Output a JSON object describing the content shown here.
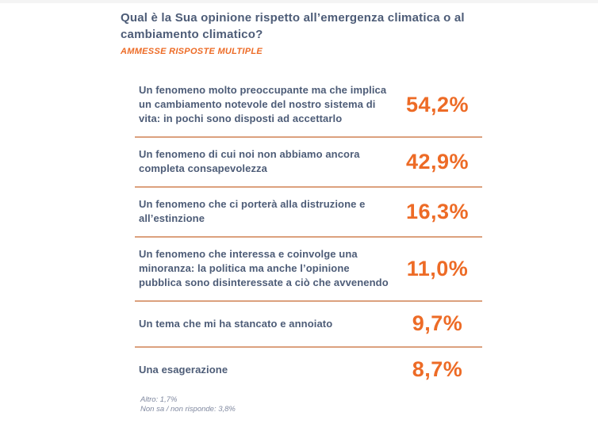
{
  "header": {
    "title": "Qual è la Sua opinione rispetto all’emergenza climatica o al cambiamento climatico?",
    "subtitle": "AMMESSE RISPOSTE MULTIPLE"
  },
  "results": {
    "rows": [
      {
        "text": "Un fenomeno molto preoccupante ma che implica un cambiamento notevole del nostro sistema di vita: in pochi sono disposti ad accettarlo",
        "value": "54,2%"
      },
      {
        "text": "Un fenomeno di cui noi non abbiamo ancora completa consapevolezza",
        "value": "42,9%"
      },
      {
        "text": "Un fenomeno che ci porterà alla distruzione e all’estinzione",
        "value": "16,3%"
      },
      {
        "text": "Un fenomeno che interessa e coinvolge una minoranza: la politica ma anche l’opinione pubblica sono disinteressate a ciò che avvenendo",
        "value": "11,0%"
      },
      {
        "text": "Un tema che mi ha stancato e annoiato",
        "value": "9,7%"
      },
      {
        "text": "Una esagerazione",
        "value": "8,7%"
      }
    ]
  },
  "footnotes": {
    "line1": "Altro: 1,7%",
    "line2": "Non sa / non risponde: 3,8%"
  },
  "colors": {
    "text_navy": "#4d5c77",
    "accent_orange": "#ed6b26",
    "divider_salmon": "#dca17e",
    "footnote_gray": "#8089a0",
    "background": "#ffffff"
  },
  "chart_data": {
    "type": "table",
    "title": "Qual è la Sua opinione rispetto all’emergenza climatica o al cambiamento climatico?",
    "subtitle": "AMMESSE RISPOSTE MULTIPLE",
    "categories": [
      "Un fenomeno molto preoccupante ma che implica un cambiamento notevole del nostro sistema di vita: in pochi sono disposti ad accettarlo",
      "Un fenomeno di cui noi non abbiamo ancora completa consapevolezza",
      "Un fenomeno che ci porterà alla distruzione e all’estinzione",
      "Un fenomeno che interessa e coinvolge una minoranza: la politica ma anche l’opinione pubblica sono disinteressate a ciò che avvenendo",
      "Un tema che mi ha stancato e annoiato",
      "Una esagerazione"
    ],
    "values": [
      54.2,
      42.9,
      16.3,
      11.0,
      9.7,
      8.7
    ],
    "unit": "%",
    "footnotes": [
      "Altro: 1,7%",
      "Non sa / non risponde: 3,8%"
    ]
  }
}
